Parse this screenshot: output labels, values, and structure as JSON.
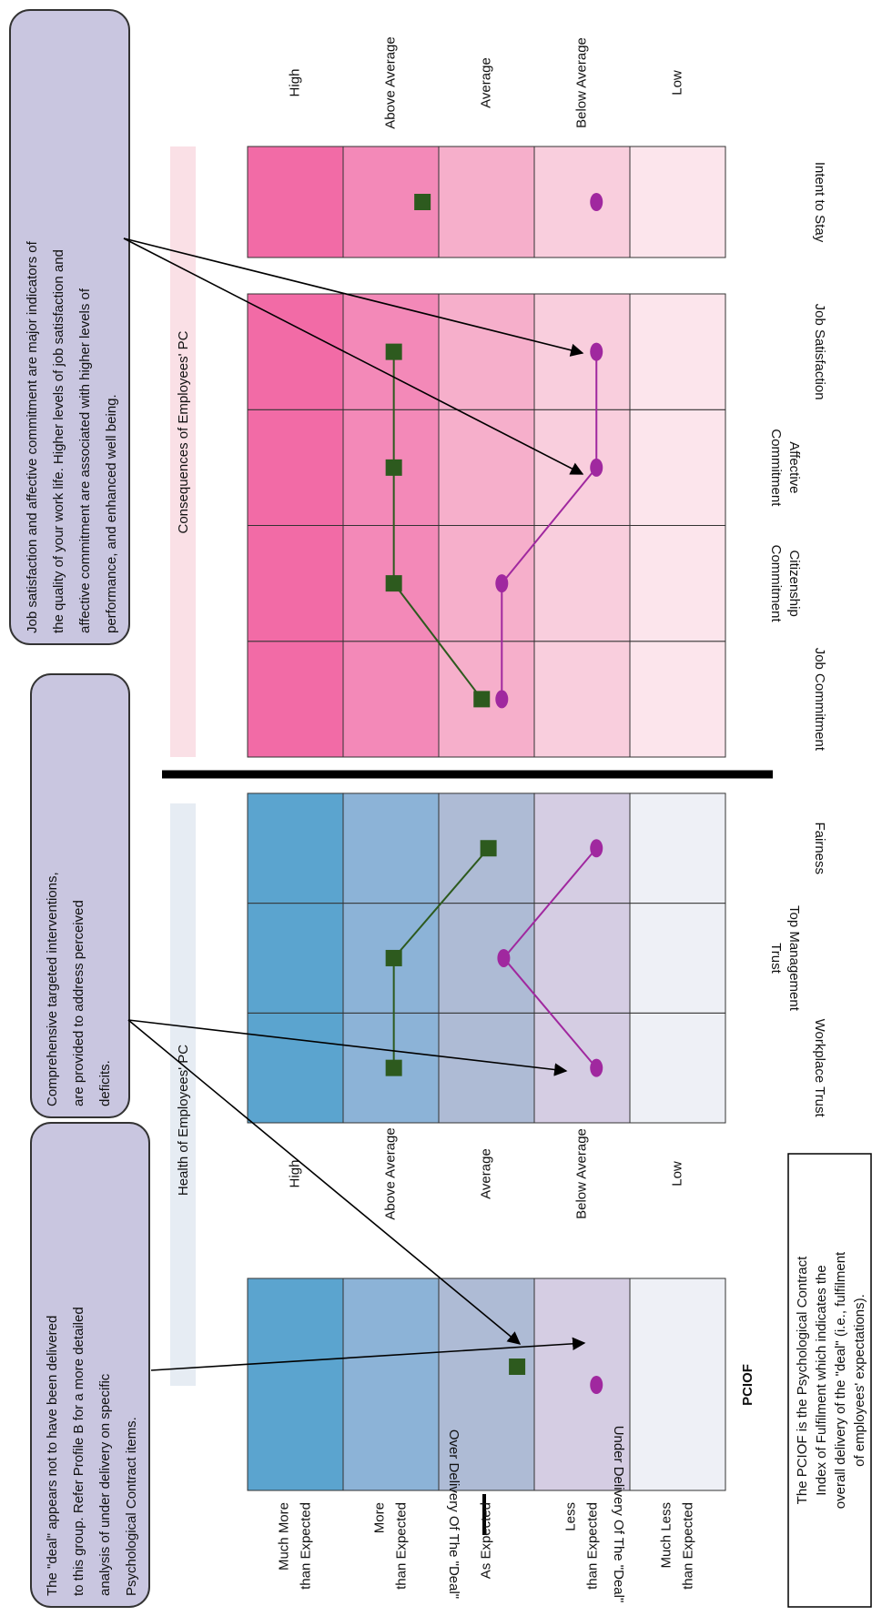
{
  "ylim": [
    0,
    5
  ],
  "blue_bands": [
    "#5ba4cf",
    "#8cb3d7",
    "#aebbd5",
    "#d5cde3",
    "#eef0f6"
  ],
  "pink_bands": [
    "#f26ba6",
    "#f389b8",
    "#f6afcb",
    "#f9cedd",
    "#fce5ec"
  ],
  "legend": {
    "over": "Over Delivery Of The \"Deal\"",
    "under": "Under Delivery Of The \"Deal\""
  },
  "pciof": {
    "label": "PCIOF",
    "levels": [
      [
        "Much More",
        "than Expected"
      ],
      [
        "More",
        "than Expected"
      ],
      [
        "As Expected"
      ],
      [
        "Less",
        "than Expected"
      ],
      [
        "Much Less",
        "than Expected"
      ]
    ],
    "series": [
      {
        "color": "#2d5a1e",
        "marker": "square",
        "value": 2.18
      },
      {
        "color": "#a0289f",
        "marker": "dot",
        "value": 1.35
      }
    ]
  },
  "health": {
    "title": "Health of Employees' PC",
    "levels": [
      "High",
      "Above Average",
      "Average",
      "Below Average",
      "Low"
    ],
    "categories": [
      [
        "Workplace Trust"
      ],
      [
        "Top Management",
        "Trust"
      ],
      [
        "Fairness"
      ]
    ],
    "series": [
      {
        "color": "#2d5a1e",
        "marker": "square",
        "values": [
          3.47,
          3.47,
          2.48
        ]
      },
      {
        "color": "#a0289f",
        "marker": "dot",
        "values": [
          1.35,
          2.32,
          1.35
        ]
      }
    ]
  },
  "consequences": {
    "title": "Consequences of Employees' PC",
    "levels": [
      "High",
      "Above Average",
      "Average",
      "Below Average",
      "Low"
    ],
    "categories": [
      [
        "Job Commitment"
      ],
      [
        "Citizenship",
        "Commitment"
      ],
      [
        "Affective",
        "Commitment"
      ],
      [
        "Job Satisfaction"
      ]
    ],
    "series": [
      {
        "color": "#2d5a1e",
        "marker": "square",
        "values": [
          2.55,
          3.47,
          3.47,
          3.47
        ]
      },
      {
        "color": "#a0289f",
        "marker": "dot",
        "values": [
          2.34,
          2.34,
          1.35,
          1.35
        ]
      }
    ]
  },
  "intent": {
    "category": [
      "Intent to Stay"
    ],
    "series": [
      {
        "color": "#2d5a1e",
        "marker": "square",
        "value": 3.17
      },
      {
        "color": "#a0289f",
        "marker": "dot",
        "value": 1.35
      }
    ]
  },
  "callouts": [
    {
      "lines": [
        "Job satisfaction and affective commitment are major indicators of",
        "the quality of your work life.  Higher levels of job satisfaction and",
        "affective commitment are associated with  higher levels of",
        "performance, and enhanced well being."
      ]
    },
    {
      "lines": [
        "Comprehensive targeted interventions,",
        "are provided to address perceived",
        "deficits."
      ]
    },
    {
      "lines": [
        "The \"deal\" appears not to have been delivered",
        "to this group. Refer Profile B for a more detailed",
        "analysis of under delivery on specific",
        "Psychological Contract items."
      ]
    }
  ],
  "note": {
    "lines": [
      "The PCIOF is the Psychological Contract",
      "Index of Fulfilment which indicates the",
      "overall delivery of the \"deal\" (i.e., fulfilment",
      "of employees' expectations)."
    ]
  }
}
